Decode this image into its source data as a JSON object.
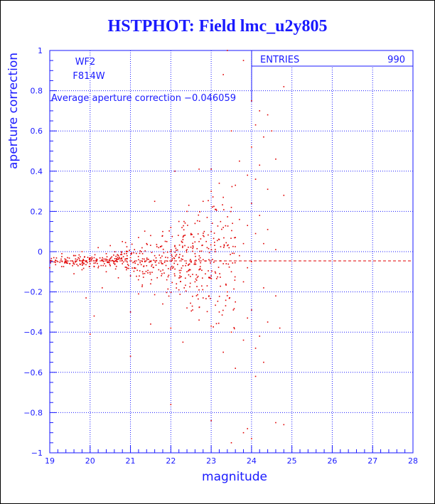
{
  "title": "HSTPHOT: Field lmc_u2y805",
  "chart_data": {
    "type": "scatter",
    "title": "HSTPHOT: Field lmc_u2y805",
    "xlabel": "magnitude",
    "ylabel": "aperture correction",
    "xlim": [
      19,
      28
    ],
    "ylim": [
      -1,
      1
    ],
    "x_ticks": [
      "19",
      "20",
      "21",
      "22",
      "23",
      "24",
      "25",
      "26",
      "27",
      "28"
    ],
    "y_ticks": [
      "-1",
      "-0.8",
      "-0.6",
      "-0.4",
      "-0.2",
      "0",
      "0.2",
      "0.4",
      "0.6",
      "0.8",
      "1"
    ],
    "grid": true,
    "annotations": {
      "chip": "WF2",
      "filter": "F814W",
      "average_text": "Average aperture correction -0.046059",
      "average_value": -0.046059
    },
    "stats_box": {
      "label": "ENTRIES",
      "value": "990"
    },
    "entries": 990,
    "colors": {
      "axis": "#1a1aff",
      "grid": "#1a1aff",
      "points": "#e00000",
      "avg_line": "#e00000",
      "title": "#1a1aff"
    },
    "points": [
      [
        23.4,
        1.0
      ],
      [
        23.8,
        0.95
      ],
      [
        23.3,
        0.88
      ],
      [
        24.8,
        0.82
      ],
      [
        24.0,
        0.75
      ],
      [
        24.2,
        0.7
      ],
      [
        24.4,
        0.68
      ],
      [
        24.1,
        0.63
      ],
      [
        24.5,
        0.6
      ],
      [
        23.5,
        0.6
      ],
      [
        24.3,
        0.57
      ],
      [
        24.0,
        0.52
      ],
      [
        24.6,
        0.46
      ],
      [
        23.7,
        0.45
      ],
      [
        24.2,
        0.43
      ],
      [
        22.7,
        0.41
      ],
      [
        23.0,
        0.41
      ],
      [
        22.1,
        0.4
      ],
      [
        23.9,
        0.38
      ],
      [
        24.1,
        0.36
      ],
      [
        23.2,
        0.34
      ],
      [
        23.6,
        0.33
      ],
      [
        24.4,
        0.31
      ],
      [
        24.8,
        0.28
      ],
      [
        23.0,
        0.3
      ],
      [
        23.3,
        0.27
      ],
      [
        22.8,
        0.25
      ],
      [
        21.6,
        0.25
      ],
      [
        24.0,
        0.24
      ],
      [
        23.5,
        0.22
      ],
      [
        23.1,
        0.21
      ],
      [
        22.4,
        0.2
      ],
      [
        24.2,
        0.18
      ],
      [
        22.9,
        0.17
      ],
      [
        23.7,
        0.16
      ],
      [
        22.2,
        0.15
      ],
      [
        22.6,
        0.14
      ],
      [
        23.9,
        0.13
      ],
      [
        23.3,
        0.12
      ],
      [
        22.0,
        0.12
      ],
      [
        24.4,
        0.11
      ],
      [
        21.8,
        0.1
      ],
      [
        23.0,
        0.1
      ],
      [
        22.5,
        0.09
      ],
      [
        24.1,
        0.09
      ],
      [
        21.5,
        0.08
      ],
      [
        22.8,
        0.08
      ],
      [
        23.6,
        0.07
      ],
      [
        21.2,
        0.07
      ],
      [
        22.3,
        0.06
      ],
      [
        23.2,
        0.06
      ],
      [
        21.9,
        0.05
      ],
      [
        20.8,
        0.05
      ],
      [
        22.7,
        0.05
      ],
      [
        24.3,
        0.04
      ],
      [
        21.4,
        0.04
      ],
      [
        23.8,
        0.04
      ],
      [
        22.1,
        0.03
      ],
      [
        20.5,
        0.03
      ],
      [
        23.4,
        0.03
      ],
      [
        21.7,
        0.02
      ],
      [
        22.9,
        0.02
      ],
      [
        20.2,
        0.02
      ],
      [
        21.1,
        0.01
      ],
      [
        22.4,
        0.01
      ],
      [
        24.6,
        0.01
      ],
      [
        19.8,
        0.0
      ],
      [
        20.9,
        0.0
      ],
      [
        22.0,
        0.0
      ],
      [
        23.1,
        0.0
      ],
      [
        19.3,
        -0.01
      ],
      [
        20.4,
        -0.01
      ],
      [
        21.3,
        -0.01
      ],
      [
        22.6,
        -0.01
      ],
      [
        19.6,
        -0.02
      ],
      [
        20.7,
        -0.02
      ],
      [
        21.6,
        -0.02
      ],
      [
        23.7,
        -0.02
      ],
      [
        19.1,
        -0.03
      ],
      [
        20.1,
        -0.03
      ],
      [
        21.0,
        -0.03
      ],
      [
        22.2,
        -0.03
      ],
      [
        19.4,
        -0.04
      ],
      [
        20.3,
        -0.04
      ],
      [
        21.2,
        -0.04
      ],
      [
        22.8,
        -0.04
      ],
      [
        19.2,
        -0.05
      ],
      [
        19.9,
        -0.05
      ],
      [
        20.6,
        -0.05
      ],
      [
        21.5,
        -0.05
      ],
      [
        22.5,
        -0.05
      ],
      [
        24.0,
        -0.05
      ],
      [
        19.5,
        -0.06
      ],
      [
        20.0,
        -0.06
      ],
      [
        20.8,
        -0.06
      ],
      [
        21.8,
        -0.06
      ],
      [
        23.3,
        -0.06
      ],
      [
        19.7,
        -0.07
      ],
      [
        20.5,
        -0.07
      ],
      [
        21.4,
        -0.07
      ],
      [
        22.3,
        -0.07
      ],
      [
        19.0,
        -0.08
      ],
      [
        20.2,
        -0.08
      ],
      [
        21.1,
        -0.08
      ],
      [
        22.0,
        -0.08
      ],
      [
        23.9,
        -0.08
      ],
      [
        19.8,
        -0.09
      ],
      [
        20.9,
        -0.09
      ],
      [
        21.7,
        -0.09
      ],
      [
        22.7,
        -0.09
      ],
      [
        20.4,
        -0.1
      ],
      [
        21.3,
        -0.1
      ],
      [
        22.4,
        -0.1
      ],
      [
        23.5,
        -0.1
      ],
      [
        19.6,
        -0.11
      ],
      [
        21.0,
        -0.12
      ],
      [
        22.1,
        -0.12
      ],
      [
        23.0,
        -0.12
      ],
      [
        20.7,
        -0.13
      ],
      [
        21.9,
        -0.14
      ],
      [
        22.6,
        -0.15
      ],
      [
        23.8,
        -0.15
      ],
      [
        21.5,
        -0.16
      ],
      [
        22.9,
        -0.17
      ],
      [
        20.3,
        -0.18
      ],
      [
        24.3,
        -0.18
      ],
      [
        22.2,
        -0.19
      ],
      [
        23.4,
        -0.2
      ],
      [
        21.2,
        -0.21
      ],
      [
        24.6,
        -0.22
      ],
      [
        22.8,
        -0.23
      ],
      [
        19.9,
        -0.23
      ],
      [
        23.6,
        -0.25
      ],
      [
        21.8,
        -0.26
      ],
      [
        22.4,
        -0.28
      ],
      [
        24.0,
        -0.29
      ],
      [
        23.2,
        -0.3
      ],
      [
        20.1,
        -0.32
      ],
      [
        21.0,
        -0.3
      ],
      [
        23.9,
        -0.33
      ],
      [
        22.7,
        -0.34
      ],
      [
        24.4,
        -0.35
      ],
      [
        21.5,
        -0.36
      ],
      [
        23.0,
        -0.37
      ],
      [
        22.0,
        -0.38
      ],
      [
        24.7,
        -0.38
      ],
      [
        23.5,
        -0.4
      ],
      [
        20.0,
        -0.41
      ],
      [
        24.2,
        -0.42
      ],
      [
        23.8,
        -0.44
      ],
      [
        22.3,
        -0.45
      ],
      [
        24.1,
        -0.48
      ],
      [
        23.3,
        -0.5
      ],
      [
        21.0,
        -0.52
      ],
      [
        24.3,
        -0.55
      ],
      [
        23.6,
        -0.58
      ],
      [
        24.1,
        -0.62
      ],
      [
        22.0,
        -0.76
      ],
      [
        23.0,
        -0.84
      ],
      [
        24.6,
        -0.85
      ],
      [
        24.8,
        -0.86
      ],
      [
        23.9,
        -0.88
      ],
      [
        23.8,
        -0.9
      ],
      [
        24.0,
        -0.93
      ],
      [
        23.5,
        -0.95
      ]
    ]
  }
}
